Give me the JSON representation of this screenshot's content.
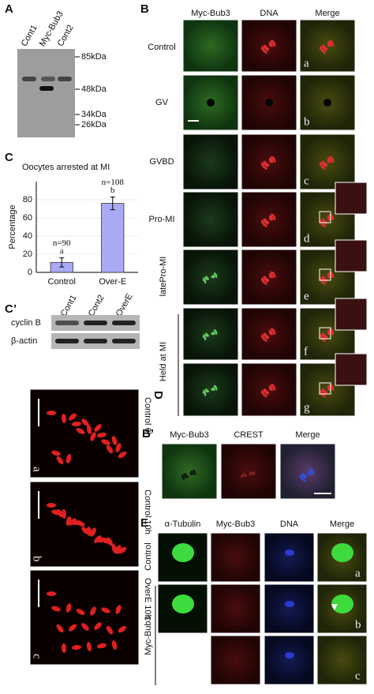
{
  "panel_labels": {
    "a": "A",
    "b": "B",
    "c": "C",
    "c2": "C’",
    "d": "D",
    "b2": "B’",
    "e": "E"
  },
  "panel_a": {
    "lanes": [
      "Cont1",
      "Myc-Bub3",
      "Cont2"
    ],
    "markers": [
      "85kDa",
      "48kDa",
      "34kDa",
      "26kDa"
    ]
  },
  "panel_b": {
    "columns": [
      "Myc-Bub3",
      "DNA",
      "Merge"
    ],
    "rows": [
      "Control",
      "GV",
      "GVBD",
      "Pro-MI",
      "latePro-MI"
    ],
    "group": "Held at MI",
    "letters": [
      "a",
      "b",
      "c",
      "d",
      "e",
      "f",
      "g"
    ]
  },
  "chart_data": {
    "type": "bar",
    "title": "Oocytes arrested at MI",
    "ylabel": "Percentage",
    "categories": [
      "Control",
      "Over-E"
    ],
    "values": [
      11,
      76
    ],
    "errors": [
      5,
      7
    ],
    "annotations": [
      "n=90",
      "a",
      "n=108",
      "b"
    ],
    "color": "#a9a9f5",
    "ylim": [
      0,
      100
    ],
    "yticks": [
      0,
      20,
      40,
      60,
      80
    ],
    "grid": true
  },
  "panel_c2": {
    "lanes": [
      "Cont1",
      "Cont2",
      "OverE"
    ],
    "rows": [
      "cyclin B",
      "β-actin"
    ]
  },
  "panel_d": {
    "conditions": [
      "Control 6h",
      "Control 10h",
      "OverE 10h"
    ],
    "letters": [
      "a",
      "b",
      "c"
    ]
  },
  "panel_b2": {
    "columns": [
      "Myc-Bub3",
      "CREST",
      "Merge"
    ]
  },
  "panel_e": {
    "columns": [
      "α-Tubulin",
      "Myc-Bub3",
      "DNA",
      "Merge"
    ],
    "rows": [
      "Control",
      "Myc-Bub3"
    ],
    "letters": [
      "a",
      "b",
      "c"
    ]
  }
}
